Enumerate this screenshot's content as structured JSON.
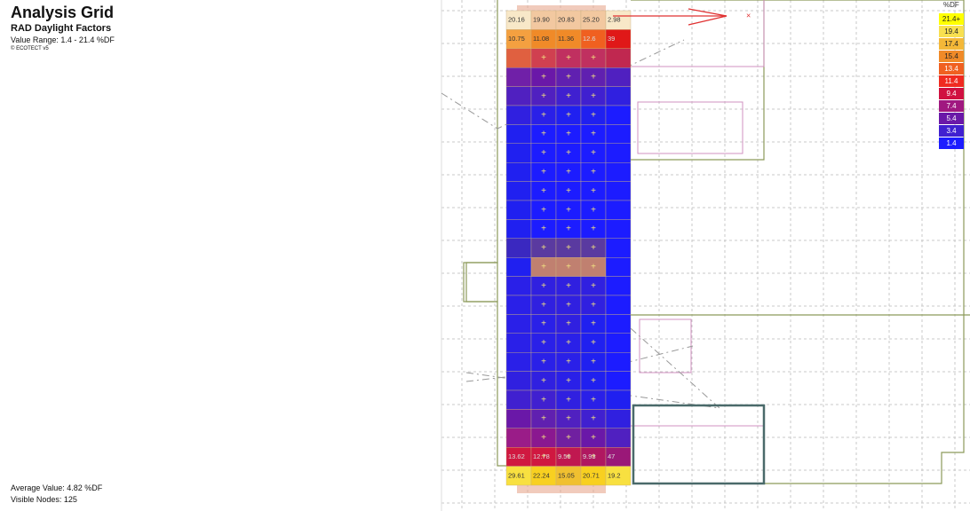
{
  "header": {
    "title": "Analysis Grid",
    "subtitle": "RAD Daylight Factors",
    "range": "Value Range: 1.4 - 21.4 %DF",
    "credit": "© ECOTECT v5"
  },
  "footer": {
    "average": "Average Value: 4.82 %DF",
    "nodes": "Visible Nodes: 125"
  },
  "legend": {
    "unit": "%DF",
    "entries": [
      {
        "label": "21.4+",
        "color": "#ffff00"
      },
      {
        "label": "19.4",
        "color": "#f8e050"
      },
      {
        "label": "17.4",
        "color": "#f4b838"
      },
      {
        "label": "15.4",
        "color": "#f08a28"
      },
      {
        "label": "13.4",
        "color": "#f06020"
      },
      {
        "label": "11.4",
        "color": "#f02a20"
      },
      {
        "label": "9.4",
        "color": "#d01040"
      },
      {
        "label": "7.4",
        "color": "#a01880"
      },
      {
        "label": "5.4",
        "color": "#6a18a8"
      },
      {
        "label": "3.4",
        "color": "#4020d0"
      },
      {
        "label": "1.4",
        "color": "#1c1cff"
      }
    ]
  },
  "grid": {
    "rows": [
      {
        "colors": [
          "#f8e8c8",
          "#f2c8a0",
          "#f2c8a0",
          "#f2c8a0",
          "#f8e8c8"
        ],
        "labels": [
          "20.16",
          "19.90",
          "20.83",
          "25.20",
          "2.98"
        ]
      },
      {
        "colors": [
          "#f4a040",
          "#f08a28",
          "#f08a28",
          "#f06020",
          "#e01818"
        ],
        "labels": [
          "10.75",
          "11.08",
          "11.36",
          "12.6",
          "39"
        ]
      },
      {
        "colors": [
          "#e06040",
          "#d04050",
          "#c03060",
          "#c03060",
          "#c02850"
        ],
        "labels": null
      },
      {
        "colors": [
          "#7020a8",
          "#6a18a8",
          "#6020b0",
          "#6020b0",
          "#5020c0"
        ],
        "labels": null
      },
      {
        "colors": [
          "#5020c0",
          "#5020c0",
          "#4020d0",
          "#4020d0",
          "#3020e0"
        ],
        "labels": null
      },
      {
        "colors": [
          "#3020e0",
          "#2a20e8",
          "#2020f0",
          "#2020f0",
          "#1c1cff"
        ],
        "labels": null
      },
      {
        "colors": [
          "#2020f0",
          "#1c1cff",
          "#1c1cff",
          "#1c1cff",
          "#1c1cff"
        ],
        "labels": null
      },
      {
        "colors": [
          "#2020f0",
          "#1c1cff",
          "#1c1cff",
          "#1c1cff",
          "#1c1cff"
        ],
        "labels": null
      },
      {
        "colors": [
          "#2020f0",
          "#1c1cff",
          "#1c1cff",
          "#1c1cff",
          "#1c1cff"
        ],
        "labels": null
      },
      {
        "colors": [
          "#2020f0",
          "#1c1cff",
          "#1c1cff",
          "#1c1cff",
          "#1c1cff"
        ],
        "labels": null
      },
      {
        "colors": [
          "#2020f0",
          "#1c1cff",
          "#1c1cff",
          "#1c1cff",
          "#1c1cff"
        ],
        "labels": null
      },
      {
        "colors": [
          "#2020f0",
          "#1c1cff",
          "#1c1cff",
          "#1c1cff",
          "#1c1cff"
        ],
        "labels": null
      },
      {
        "colors": [
          "#3a28c0",
          "#5a3aa0",
          "#5a3aa0",
          "#5a3aa0",
          "#1c1cff"
        ],
        "labels": null
      },
      {
        "colors": [
          "#2020f0",
          "#c08070",
          "#c08070",
          "#c08070",
          "#1c1cff"
        ],
        "labels": null
      },
      {
        "colors": [
          "#2a20e8",
          "#3020e0",
          "#3020e0",
          "#3020e0",
          "#1c1cff"
        ],
        "labels": null
      },
      {
        "colors": [
          "#2a20e8",
          "#3020e0",
          "#3020e0",
          "#3020e0",
          "#1c1cff"
        ],
        "labels": null
      },
      {
        "colors": [
          "#2a20e8",
          "#2a20e8",
          "#3020e0",
          "#2020f0",
          "#1c1cff"
        ],
        "labels": null
      },
      {
        "colors": [
          "#2a20e8",
          "#2a20e8",
          "#2a20e8",
          "#2020f0",
          "#1c1cff"
        ],
        "labels": null
      },
      {
        "colors": [
          "#2a20e8",
          "#2a20e8",
          "#2a20e8",
          "#2020f0",
          "#1c1cff"
        ],
        "labels": null
      },
      {
        "colors": [
          "#3020e0",
          "#3020e0",
          "#2a20e8",
          "#2020f0",
          "#1c1cff"
        ],
        "labels": null
      },
      {
        "colors": [
          "#4020d0",
          "#4020d0",
          "#3020e0",
          "#2a20e8",
          "#2020f0"
        ],
        "labels": null
      },
      {
        "colors": [
          "#6a18a8",
          "#6020b0",
          "#5020c0",
          "#4020d0",
          "#3020e0"
        ],
        "labels": null
      },
      {
        "colors": [
          "#9a1c88",
          "#8a1890",
          "#7020a0",
          "#6a18a8",
          "#5020c0"
        ],
        "labels": null
      },
      {
        "colors": [
          "#d01840",
          "#d01840",
          "#c01850",
          "#b01860",
          "#9a1878"
        ],
        "labels": [
          "13.62",
          "12.78",
          "9.56",
          "9.93",
          "47"
        ]
      },
      {
        "colors": [
          "#f8e040",
          "#f8d020",
          "#f0c030",
          "#f8d020",
          "#f8e040"
        ],
        "labels": [
          "29.61",
          "22.24",
          "15.05",
          "20.71",
          "19.2"
        ]
      }
    ]
  }
}
